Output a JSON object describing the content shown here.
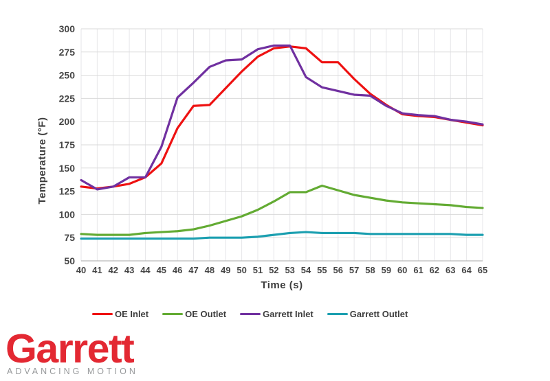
{
  "chart_data": {
    "type": "line",
    "title": "",
    "xlabel": "Time (s)",
    "ylabel": "Temperature (°F)",
    "xlim": [
      40,
      65
    ],
    "ylim": [
      50,
      300
    ],
    "x_ticks": [
      40,
      41,
      42,
      43,
      44,
      45,
      46,
      47,
      48,
      49,
      50,
      51,
      52,
      53,
      54,
      55,
      56,
      57,
      58,
      59,
      60,
      61,
      62,
      63,
      64,
      65
    ],
    "y_ticks": [
      50,
      75,
      100,
      125,
      150,
      175,
      200,
      225,
      250,
      275,
      300
    ],
    "grid": true,
    "legend_position": "bottom",
    "x": [
      40,
      41,
      42,
      43,
      44,
      45,
      46,
      47,
      48,
      49,
      50,
      51,
      52,
      53,
      54,
      55,
      56,
      57,
      58,
      59,
      60,
      61,
      62,
      63,
      64,
      65
    ],
    "series": [
      {
        "name": "OE Inlet",
        "color": "#ee1111",
        "values": [
          130,
          128,
          130,
          133,
          140,
          155,
          193,
          217,
          218,
          236,
          254,
          270,
          279,
          281,
          279,
          264,
          264,
          246,
          230,
          218,
          208,
          206,
          205,
          202,
          199,
          196
        ]
      },
      {
        "name": "OE Outlet",
        "color": "#63ab33",
        "values": [
          79,
          78,
          78,
          78,
          80,
          81,
          82,
          84,
          88,
          93,
          98,
          105,
          114,
          124,
          124,
          131,
          126,
          121,
          118,
          115,
          113,
          112,
          111,
          110,
          108,
          107
        ]
      },
      {
        "name": "Garrett Inlet",
        "color": "#7030a0",
        "values": [
          137,
          127,
          130,
          140,
          140,
          173,
          226,
          242,
          259,
          266,
          267,
          278,
          282,
          282,
          248,
          237,
          233,
          229,
          228,
          217,
          209,
          207,
          206,
          202,
          200,
          197
        ]
      },
      {
        "name": "Garrett Outlet",
        "color": "#1b9fb0",
        "values": [
          74,
          74,
          74,
          74,
          74,
          74,
          74,
          74,
          75,
          75,
          75,
          76,
          78,
          80,
          81,
          80,
          80,
          80,
          79,
          79,
          79,
          79,
          79,
          79,
          78,
          78
        ]
      }
    ]
  },
  "branding": {
    "logo_text": "Garrett",
    "tagline": "ADVANCING MOTION",
    "logo_color": "#e32832",
    "tagline_color": "#97999b"
  }
}
